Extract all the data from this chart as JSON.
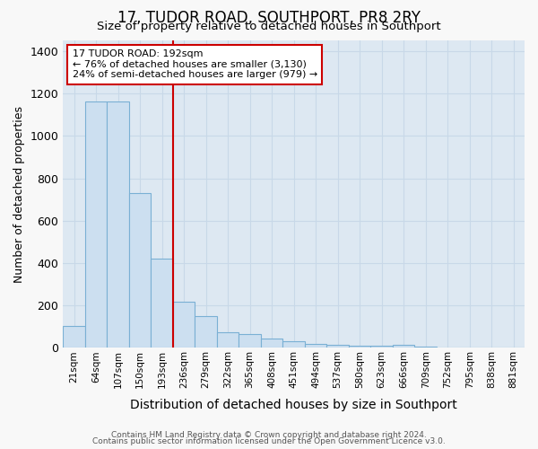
{
  "title": "17, TUDOR ROAD, SOUTHPORT, PR8 2RY",
  "subtitle": "Size of property relative to detached houses in Southport",
  "xlabel": "Distribution of detached houses by size in Southport",
  "ylabel": "Number of detached properties",
  "footer_line1": "Contains HM Land Registry data © Crown copyright and database right 2024.",
  "footer_line2": "Contains public sector information licensed under the Open Government Licence v3.0.",
  "categories": [
    "21sqm",
    "64sqm",
    "107sqm",
    "150sqm",
    "193sqm",
    "236sqm",
    "279sqm",
    "322sqm",
    "365sqm",
    "408sqm",
    "451sqm",
    "494sqm",
    "537sqm",
    "580sqm",
    "623sqm",
    "666sqm",
    "709sqm",
    "752sqm",
    "795sqm",
    "838sqm",
    "881sqm"
  ],
  "values": [
    105,
    1160,
    1160,
    730,
    420,
    220,
    150,
    75,
    65,
    45,
    30,
    18,
    15,
    10,
    10,
    15,
    7,
    0,
    0,
    0,
    3
  ],
  "bar_color": "#ccdff0",
  "bar_edge_color": "#7ab0d4",
  "reference_index": 4,
  "reference_line_color": "#cc0000",
  "annotation_line1": "17 TUDOR ROAD: 192sqm",
  "annotation_line2": "← 76% of detached houses are smaller (3,130)",
  "annotation_line3": "24% of semi-detached houses are larger (979) →",
  "annotation_box_facecolor": "#ffffff",
  "annotation_box_edgecolor": "#cc0000",
  "ylim": [
    0,
    1450
  ],
  "yticks": [
    0,
    200,
    400,
    600,
    800,
    1000,
    1200,
    1400
  ],
  "grid_color": "#c8d8e8",
  "plot_bg_color": "#dde8f2",
  "fig_bg_color": "#f8f8f8",
  "title_fontsize": 12,
  "subtitle_fontsize": 9.5,
  "ylabel_fontsize": 9,
  "xlabel_fontsize": 10
}
